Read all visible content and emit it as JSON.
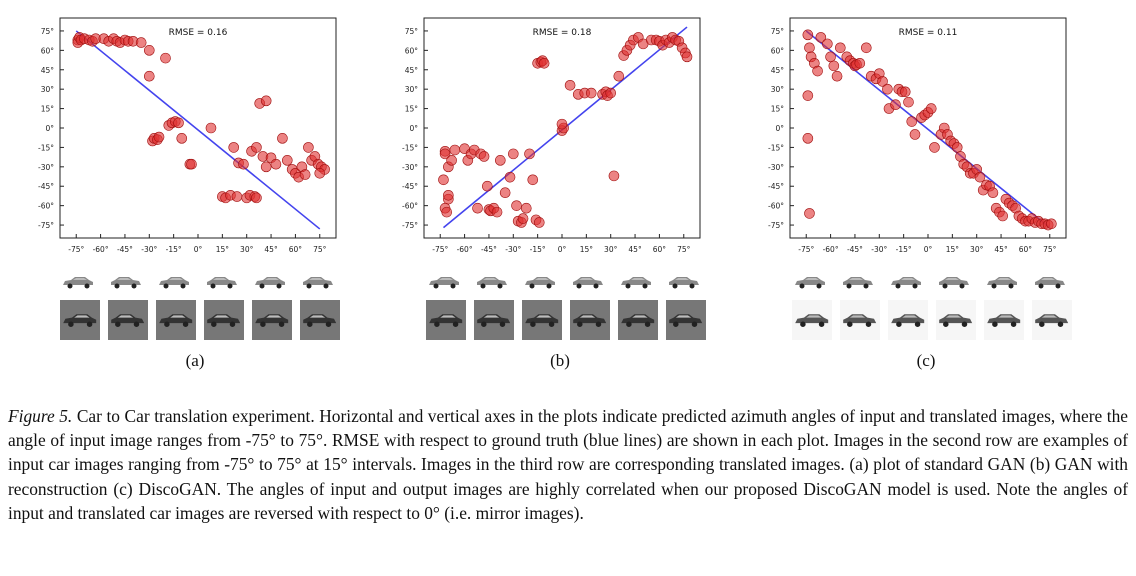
{
  "figure": {
    "panels": [
      {
        "id": "a",
        "label": "(a)",
        "rmse_text": "RMSE = 0.16"
      },
      {
        "id": "b",
        "label": "(b)",
        "rmse_text": "RMSE = 0.18"
      },
      {
        "id": "c",
        "label": "(c)",
        "rmse_text": "RMSE = 0.11"
      }
    ],
    "caption": {
      "fig_label": "Figure 5.",
      "text": "Car to Car translation experiment. Horizontal and vertical axes in the plots indicate predicted azimuth angles of input and translated images, where the angle of input image ranges from -75° to 75°. RMSE with respect to ground truth (blue lines) are shown in each plot. Images in the second row are examples of input car images ranging from -75° to 75° at 15° intervals. Images in the third row are corresponding translated images. (a) plot of standard GAN (b) GAN with reconstruction (c) DiscoGAN. The angles of input and output images are highly correlated when our proposed DiscoGAN model is used. Note the angles of input and translated car images are reversed with respect to 0° (i.e. mirror images)."
    }
  },
  "chart_data": [
    {
      "type": "scatter",
      "title": "RMSE = 0.16",
      "xlim": [
        -85,
        85
      ],
      "ylim": [
        -85,
        85
      ],
      "x_ticks": [
        -75,
        -60,
        -45,
        -30,
        -15,
        0,
        15,
        30,
        45,
        60,
        75
      ],
      "y_ticks": [
        75,
        60,
        45,
        30,
        15,
        0,
        -15,
        -30,
        -45,
        -60,
        -75
      ],
      "tick_labels_x": [
        "-75°",
        "-60°",
        "-45°",
        "-30°",
        "-15°",
        "0°",
        "15°",
        "30°",
        "45°",
        "60°",
        "75°"
      ],
      "tick_labels_y": [
        "75°",
        "60°",
        "45°",
        "30°",
        "15°",
        "0°",
        "-15°",
        "-30°",
        "-45°",
        "-60°",
        "-75°"
      ],
      "grid": false,
      "point_color": "#e03030",
      "line": {
        "x": [
          -75,
          75
        ],
        "y": [
          75,
          -78
        ],
        "color": "#4444ee"
      },
      "points": [
        [
          -74,
          68
        ],
        [
          -74,
          66
        ],
        [
          -73,
          70
        ],
        [
          -72,
          68
        ],
        [
          -70,
          69
        ],
        [
          -67,
          68
        ],
        [
          -65,
          67
        ],
        [
          -63,
          69
        ],
        [
          -58,
          69
        ],
        [
          -55,
          67
        ],
        [
          -52,
          69
        ],
        [
          -50,
          67
        ],
        [
          -48,
          66
        ],
        [
          -45,
          68
        ],
        [
          -43,
          67
        ],
        [
          -40,
          67
        ],
        [
          -35,
          66
        ],
        [
          -30,
          60
        ],
        [
          -30,
          40
        ],
        [
          -20,
          54
        ],
        [
          -28,
          -10
        ],
        [
          -27,
          -8
        ],
        [
          -25,
          -9
        ],
        [
          -24,
          -7
        ],
        [
          -18,
          2
        ],
        [
          -16,
          4
        ],
        [
          -14,
          5
        ],
        [
          -12,
          4
        ],
        [
          -10,
          -8
        ],
        [
          -5,
          -28
        ],
        [
          -4,
          -28
        ],
        [
          8,
          0
        ],
        [
          22,
          -15
        ],
        [
          15,
          -53
        ],
        [
          17,
          -54
        ],
        [
          20,
          -52
        ],
        [
          24,
          -53
        ],
        [
          30,
          -54
        ],
        [
          32,
          -52
        ],
        [
          35,
          -53
        ],
        [
          36,
          -54
        ],
        [
          25,
          -27
        ],
        [
          28,
          -28
        ],
        [
          33,
          -18
        ],
        [
          36,
          -15
        ],
        [
          38,
          19
        ],
        [
          42,
          21
        ],
        [
          40,
          -22
        ],
        [
          42,
          -30
        ],
        [
          45,
          -23
        ],
        [
          48,
          -28
        ],
        [
          52,
          -8
        ],
        [
          55,
          -25
        ],
        [
          58,
          -32
        ],
        [
          60,
          -35
        ],
        [
          62,
          -38
        ],
        [
          64,
          -30
        ],
        [
          66,
          -36
        ],
        [
          68,
          -15
        ],
        [
          70,
          -25
        ],
        [
          72,
          -22
        ],
        [
          74,
          -28
        ],
        [
          76,
          -30
        ],
        [
          78,
          -32
        ],
        [
          75,
          -35
        ]
      ]
    },
    {
      "type": "scatter",
      "title": "RMSE = 0.18",
      "xlim": [
        -85,
        85
      ],
      "ylim": [
        -85,
        85
      ],
      "x_ticks": [
        -75,
        -60,
        -45,
        -30,
        -15,
        0,
        15,
        30,
        45,
        60,
        75
      ],
      "y_ticks": [
        75,
        60,
        45,
        30,
        15,
        0,
        -15,
        -30,
        -45,
        -60,
        -75
      ],
      "tick_labels_x": [
        "-75°",
        "-60°",
        "-45°",
        "-30°",
        "-15°",
        "0°",
        "15°",
        "30°",
        "45°",
        "60°",
        "75°"
      ],
      "tick_labels_y": [
        "75°",
        "60°",
        "45°",
        "30°",
        "15°",
        "0°",
        "-15°",
        "-30°",
        "-45°",
        "-60°",
        "-75°"
      ],
      "grid": false,
      "point_color": "#e03030",
      "line": {
        "x": [
          -73,
          77
        ],
        "y": [
          -77,
          78
        ],
        "color": "#4444ee"
      },
      "points": [
        [
          -72,
          -18
        ],
        [
          -72,
          -20
        ],
        [
          -70,
          -55
        ],
        [
          -72,
          -62
        ],
        [
          -71,
          -65
        ],
        [
          -70,
          -52
        ],
        [
          -73,
          -40
        ],
        [
          -70,
          -30
        ],
        [
          -68,
          -25
        ],
        [
          -66,
          -17
        ],
        [
          -60,
          -16
        ],
        [
          -58,
          -25
        ],
        [
          -56,
          -20
        ],
        [
          -54,
          -17
        ],
        [
          -52,
          -62
        ],
        [
          -50,
          -20
        ],
        [
          -48,
          -22
        ],
        [
          -46,
          -45
        ],
        [
          -45,
          -63
        ],
        [
          -44,
          -64
        ],
        [
          -42,
          -62
        ],
        [
          -40,
          -65
        ],
        [
          -38,
          -25
        ],
        [
          -35,
          -50
        ],
        [
          -32,
          -38
        ],
        [
          -30,
          -20
        ],
        [
          -28,
          -60
        ],
        [
          -27,
          -72
        ],
        [
          -25,
          -73
        ],
        [
          -24,
          -70
        ],
        [
          -22,
          -62
        ],
        [
          -20,
          -20
        ],
        [
          -18,
          -40
        ],
        [
          -16,
          -71
        ],
        [
          -14,
          -73
        ],
        [
          -15,
          50
        ],
        [
          -13,
          51
        ],
        [
          -12,
          52
        ],
        [
          -11,
          50
        ],
        [
          0,
          -2
        ],
        [
          1,
          0
        ],
        [
          0,
          3
        ],
        [
          5,
          33
        ],
        [
          10,
          26
        ],
        [
          14,
          27
        ],
        [
          18,
          27
        ],
        [
          25,
          26
        ],
        [
          27,
          28
        ],
        [
          28,
          25
        ],
        [
          30,
          27
        ],
        [
          32,
          -37
        ],
        [
          35,
          40
        ],
        [
          38,
          56
        ],
        [
          40,
          60
        ],
        [
          42,
          64
        ],
        [
          44,
          68
        ],
        [
          47,
          70
        ],
        [
          50,
          65
        ],
        [
          55,
          68
        ],
        [
          58,
          68
        ],
        [
          60,
          67
        ],
        [
          62,
          64
        ],
        [
          64,
          68
        ],
        [
          66,
          66
        ],
        [
          68,
          70
        ],
        [
          70,
          68
        ],
        [
          72,
          67
        ],
        [
          74,
          62
        ],
        [
          76,
          58
        ],
        [
          77,
          55
        ]
      ]
    },
    {
      "type": "scatter",
      "title": "RMSE = 0.11",
      "xlim": [
        -85,
        85
      ],
      "ylim": [
        -85,
        85
      ],
      "x_ticks": [
        -75,
        -60,
        -45,
        -30,
        -15,
        0,
        15,
        30,
        45,
        60,
        75
      ],
      "y_ticks": [
        75,
        60,
        45,
        30,
        15,
        0,
        -15,
        -30,
        -45,
        -60,
        -75
      ],
      "tick_labels_x": [
        "-75°",
        "-60°",
        "-45°",
        "-30°",
        "-15°",
        "0°",
        "15°",
        "30°",
        "45°",
        "60°",
        "75°"
      ],
      "tick_labels_y": [
        "75°",
        "60°",
        "45°",
        "30°",
        "15°",
        "0°",
        "-15°",
        "-30°",
        "-45°",
        "-60°",
        "-75°"
      ],
      "grid": false,
      "point_color": "#e03030",
      "line": {
        "x": [
          -75,
          75
        ],
        "y": [
          75,
          -77
        ],
        "color": "#4444ee"
      },
      "points": [
        [
          -74,
          72
        ],
        [
          -73,
          62
        ],
        [
          -72,
          55
        ],
        [
          -74,
          25
        ],
        [
          -74,
          -8
        ],
        [
          -73,
          -66
        ],
        [
          -70,
          50
        ],
        [
          -68,
          44
        ],
        [
          -66,
          70
        ],
        [
          -62,
          65
        ],
        [
          -60,
          55
        ],
        [
          -58,
          48
        ],
        [
          -56,
          40
        ],
        [
          -54,
          62
        ],
        [
          -50,
          55
        ],
        [
          -48,
          52
        ],
        [
          -46,
          50
        ],
        [
          -45,
          48
        ],
        [
          -44,
          49
        ],
        [
          -42,
          50
        ],
        [
          -38,
          62
        ],
        [
          -35,
          40
        ],
        [
          -32,
          38
        ],
        [
          -30,
          42
        ],
        [
          -28,
          36
        ],
        [
          -25,
          30
        ],
        [
          -24,
          15
        ],
        [
          -20,
          18
        ],
        [
          -18,
          30
        ],
        [
          -16,
          28
        ],
        [
          -14,
          28
        ],
        [
          -12,
          20
        ],
        [
          -10,
          5
        ],
        [
          -8,
          -5
        ],
        [
          -4,
          8
        ],
        [
          -2,
          10
        ],
        [
          0,
          12
        ],
        [
          2,
          15
        ],
        [
          4,
          -15
        ],
        [
          8,
          -5
        ],
        [
          10,
          0
        ],
        [
          12,
          -5
        ],
        [
          14,
          -10
        ],
        [
          16,
          -12
        ],
        [
          18,
          -15
        ],
        [
          20,
          -22
        ],
        [
          22,
          -28
        ],
        [
          24,
          -30
        ],
        [
          26,
          -35
        ],
        [
          28,
          -35
        ],
        [
          30,
          -32
        ],
        [
          32,
          -38
        ],
        [
          34,
          -48
        ],
        [
          36,
          -44
        ],
        [
          38,
          -45
        ],
        [
          40,
          -50
        ],
        [
          42,
          -62
        ],
        [
          44,
          -65
        ],
        [
          46,
          -68
        ],
        [
          48,
          -55
        ],
        [
          50,
          -58
        ],
        [
          52,
          -60
        ],
        [
          54,
          -62
        ],
        [
          56,
          -68
        ],
        [
          58,
          -70
        ],
        [
          60,
          -72
        ],
        [
          62,
          -72
        ],
        [
          64,
          -70
        ],
        [
          66,
          -73
        ],
        [
          68,
          -72
        ],
        [
          70,
          -74
        ],
        [
          72,
          -74
        ],
        [
          74,
          -75
        ],
        [
          76,
          -74
        ]
      ]
    }
  ]
}
